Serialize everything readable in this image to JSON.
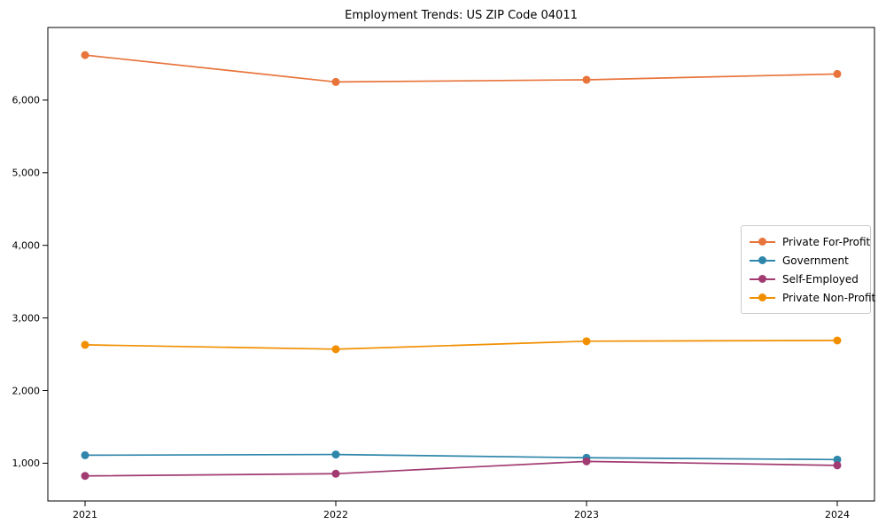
{
  "chart_data": {
    "type": "line",
    "title": "Employment Trends: US ZIP Code 04011",
    "categories": [
      "2021",
      "2022",
      "2023",
      "2024"
    ],
    "series": [
      {
        "name": "Private For-Profit",
        "color": "#E8743B",
        "values": [
          6620,
          6250,
          6280,
          6360
        ]
      },
      {
        "name": "Government",
        "color": "#2E86AB",
        "values": [
          1110,
          1120,
          1075,
          1050
        ]
      },
      {
        "name": "Self-Employed",
        "color": "#A23B72",
        "values": [
          825,
          855,
          1025,
          970
        ]
      },
      {
        "name": "Private Non-Profit",
        "color": "#F18F01",
        "values": [
          2630,
          2570,
          2680,
          2690
        ]
      }
    ],
    "xlabel": "",
    "ylabel": "",
    "ylim": [
      480,
      7000
    ],
    "yticks": [
      1000,
      2000,
      3000,
      4000,
      5000,
      6000
    ],
    "ytick_labels": [
      "1,000",
      "2,000",
      "3,000",
      "4,000",
      "5,000",
      "6,000"
    ],
    "grid": false,
    "legend_position": "center-right",
    "axis_color": "#000000",
    "tick_label_color": "#000000",
    "legend_border_color": "#cccccc"
  }
}
